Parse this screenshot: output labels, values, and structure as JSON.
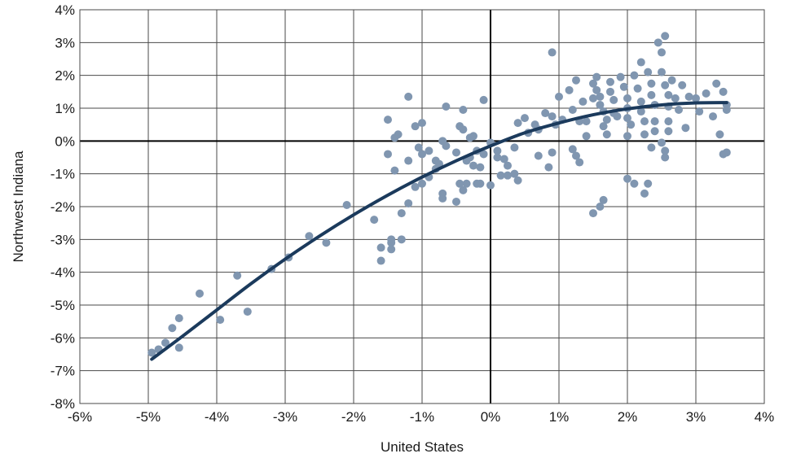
{
  "chart_data": {
    "type": "scatter",
    "title": "",
    "xlabel": "United States",
    "ylabel": "Northwest Indiana",
    "xlim": [
      -6,
      4
    ],
    "ylim": [
      -8,
      4
    ],
    "x_ticks": [
      -6,
      -5,
      -4,
      -3,
      -2,
      -1,
      0,
      1,
      2,
      3,
      4
    ],
    "y_ticks": [
      -8,
      -7,
      -6,
      -5,
      -4,
      -3,
      -2,
      -1,
      0,
      1,
      2,
      3,
      4
    ],
    "x_tick_labels": [
      "-6%",
      "-5%",
      "-4%",
      "-3%",
      "-2%",
      "-1%",
      "0%",
      "1%",
      "2%",
      "3%",
      "4%"
    ],
    "y_tick_labels": [
      "-8%",
      "-7%",
      "-6%",
      "-5%",
      "-4%",
      "-3%",
      "-2%",
      "-1%",
      "0%",
      "1%",
      "2%",
      "3%",
      "4%"
    ],
    "grid": true,
    "legend": "none",
    "colors": {
      "points": "#8096b0",
      "trend": "#1b3a5c",
      "grid": "#4a4a4a",
      "zero_axes": "#000000"
    },
    "points": [
      [
        -4.95,
        -6.45
      ],
      [
        -4.85,
        -6.35
      ],
      [
        -4.75,
        -6.15
      ],
      [
        -4.65,
        -5.7
      ],
      [
        -4.55,
        -5.4
      ],
      [
        -4.55,
        -6.3
      ],
      [
        -4.25,
        -4.65
      ],
      [
        -3.95,
        -5.45
      ],
      [
        -3.7,
        -4.1
      ],
      [
        -3.55,
        -5.2
      ],
      [
        -3.2,
        -3.9
      ],
      [
        -2.95,
        -3.55
      ],
      [
        -2.65,
        -2.9
      ],
      [
        -2.4,
        -3.1
      ],
      [
        -2.1,
        -1.95
      ],
      [
        -1.7,
        -2.4
      ],
      [
        -1.6,
        -3.25
      ],
      [
        -1.6,
        -3.65
      ],
      [
        -1.45,
        -3.0
      ],
      [
        -1.45,
        -3.3
      ],
      [
        -1.45,
        -3.1
      ],
      [
        -1.3,
        -3.0
      ],
      [
        -1.3,
        -2.2
      ],
      [
        -1.2,
        -1.9
      ],
      [
        -1.5,
        0.65
      ],
      [
        -1.4,
        0.1
      ],
      [
        -1.35,
        0.2
      ],
      [
        -1.5,
        -0.4
      ],
      [
        -1.4,
        -0.9
      ],
      [
        -1.2,
        -0.6
      ],
      [
        -1.2,
        1.35
      ],
      [
        -1.1,
        0.45
      ],
      [
        -1.0,
        0.55
      ],
      [
        -1.05,
        -0.2
      ],
      [
        -1.0,
        -0.4
      ],
      [
        -0.9,
        -0.3
      ],
      [
        -0.8,
        -0.6
      ],
      [
        -1.1,
        -1.4
      ],
      [
        -1.0,
        -1.3
      ],
      [
        -0.9,
        -1.1
      ],
      [
        -0.8,
        -0.85
      ],
      [
        -0.7,
        -1.6
      ],
      [
        -0.7,
        -1.75
      ],
      [
        -0.75,
        -0.7
      ],
      [
        -0.65,
        1.05
      ],
      [
        -0.7,
        0.0
      ],
      [
        -0.65,
        -0.15
      ],
      [
        -0.5,
        -0.35
      ],
      [
        -0.45,
        0.45
      ],
      [
        -0.4,
        0.35
      ],
      [
        -0.4,
        0.95
      ],
      [
        -0.35,
        -0.6
      ],
      [
        -0.3,
        0.1
      ],
      [
        -0.3,
        -0.5
      ],
      [
        -0.45,
        -1.3
      ],
      [
        -0.4,
        -1.5
      ],
      [
        -0.35,
        -1.3
      ],
      [
        -0.5,
        -1.85
      ],
      [
        -0.25,
        0.15
      ],
      [
        -0.2,
        -0.3
      ],
      [
        -0.25,
        -0.75
      ],
      [
        -0.15,
        -0.8
      ],
      [
        -0.2,
        -1.3
      ],
      [
        -0.15,
        -1.3
      ],
      [
        -0.1,
        1.25
      ],
      [
        -0.1,
        -0.4
      ],
      [
        0.0,
        -0.05
      ],
      [
        0.0,
        -1.35
      ],
      [
        0.1,
        -0.3
      ],
      [
        0.1,
        -0.5
      ],
      [
        0.2,
        -0.55
      ],
      [
        0.25,
        -0.75
      ],
      [
        0.15,
        -1.05
      ],
      [
        0.25,
        -1.05
      ],
      [
        0.35,
        -1.0
      ],
      [
        0.4,
        -1.2
      ],
      [
        0.35,
        -0.2
      ],
      [
        0.4,
        0.55
      ],
      [
        0.5,
        0.7
      ],
      [
        0.55,
        0.25
      ],
      [
        0.65,
        0.5
      ],
      [
        0.7,
        0.35
      ],
      [
        0.7,
        -0.45
      ],
      [
        0.8,
        0.85
      ],
      [
        0.85,
        -0.8
      ],
      [
        0.9,
        0.75
      ],
      [
        0.9,
        -0.35
      ],
      [
        0.95,
        0.5
      ],
      [
        0.9,
        2.7
      ],
      [
        1.0,
        1.35
      ],
      [
        1.05,
        0.65
      ],
      [
        1.15,
        1.55
      ],
      [
        1.2,
        0.95
      ],
      [
        1.25,
        1.85
      ],
      [
        1.2,
        -0.25
      ],
      [
        1.25,
        -0.45
      ],
      [
        1.3,
        -0.65
      ],
      [
        1.3,
        0.6
      ],
      [
        1.35,
        1.2
      ],
      [
        1.4,
        0.6
      ],
      [
        1.4,
        0.15
      ],
      [
        1.5,
        1.3
      ],
      [
        1.5,
        1.75
      ],
      [
        1.55,
        1.55
      ],
      [
        1.55,
        1.95
      ],
      [
        1.6,
        1.35
      ],
      [
        1.6,
        1.1
      ],
      [
        1.65,
        0.9
      ],
      [
        1.65,
        0.45
      ],
      [
        1.7,
        0.65
      ],
      [
        1.7,
        0.2
      ],
      [
        1.75,
        1.8
      ],
      [
        1.75,
        1.5
      ],
      [
        1.8,
        1.25
      ],
      [
        1.8,
        0.85
      ],
      [
        1.85,
        0.75
      ],
      [
        1.5,
        -2.2
      ],
      [
        1.6,
        -2.0
      ],
      [
        1.65,
        -1.8
      ],
      [
        1.9,
        1.95
      ],
      [
        1.95,
        1.65
      ],
      [
        2.0,
        1.3
      ],
      [
        2.0,
        1.0
      ],
      [
        2.0,
        0.7
      ],
      [
        2.05,
        0.5
      ],
      [
        2.0,
        0.15
      ],
      [
        2.0,
        -1.15
      ],
      [
        2.1,
        -1.3
      ],
      [
        2.1,
        2.0
      ],
      [
        2.15,
        1.6
      ],
      [
        2.2,
        1.2
      ],
      [
        2.2,
        0.9
      ],
      [
        2.25,
        0.6
      ],
      [
        2.25,
        0.2
      ],
      [
        2.2,
        2.4
      ],
      [
        2.25,
        -1.6
      ],
      [
        2.3,
        -1.3
      ],
      [
        2.3,
        2.1
      ],
      [
        2.35,
        1.75
      ],
      [
        2.35,
        1.4
      ],
      [
        2.4,
        1.1
      ],
      [
        2.4,
        0.6
      ],
      [
        2.4,
        0.3
      ],
      [
        2.35,
        -0.2
      ],
      [
        2.45,
        3.0
      ],
      [
        2.5,
        2.7
      ],
      [
        2.55,
        3.2
      ],
      [
        2.5,
        2.1
      ],
      [
        2.55,
        1.7
      ],
      [
        2.6,
        1.4
      ],
      [
        2.6,
        1.05
      ],
      [
        2.6,
        0.6
      ],
      [
        2.6,
        0.3
      ],
      [
        2.5,
        -0.05
      ],
      [
        2.55,
        -0.3
      ],
      [
        2.55,
        -0.5
      ],
      [
        2.65,
        1.85
      ],
      [
        2.7,
        1.3
      ],
      [
        2.75,
        0.95
      ],
      [
        2.8,
        1.7
      ],
      [
        2.85,
        0.4
      ],
      [
        2.9,
        1.35
      ],
      [
        3.0,
        1.3
      ],
      [
        3.05,
        0.9
      ],
      [
        3.15,
        1.45
      ],
      [
        3.25,
        0.75
      ],
      [
        3.3,
        1.75
      ],
      [
        3.35,
        0.2
      ],
      [
        3.4,
        1.5
      ],
      [
        3.4,
        -0.4
      ],
      [
        3.45,
        1.1
      ],
      [
        3.45,
        0.95
      ],
      [
        3.45,
        -0.35
      ]
    ],
    "trend_line": {
      "type": "polynomial-fit",
      "x_range": [
        -4.95,
        3.45
      ],
      "samples": [
        [
          -4.95,
          -6.65
        ],
        [
          -4.5,
          -5.95
        ],
        [
          -4.0,
          -5.15
        ],
        [
          -3.5,
          -4.35
        ],
        [
          -3.0,
          -3.6
        ],
        [
          -2.5,
          -2.9
        ],
        [
          -2.0,
          -2.25
        ],
        [
          -1.5,
          -1.65
        ],
        [
          -1.0,
          -1.1
        ],
        [
          -0.5,
          -0.6
        ],
        [
          0.0,
          -0.15
        ],
        [
          0.5,
          0.25
        ],
        [
          1.0,
          0.55
        ],
        [
          1.5,
          0.8
        ],
        [
          2.0,
          0.98
        ],
        [
          2.5,
          1.1
        ],
        [
          3.0,
          1.16
        ],
        [
          3.45,
          1.17
        ]
      ]
    }
  }
}
